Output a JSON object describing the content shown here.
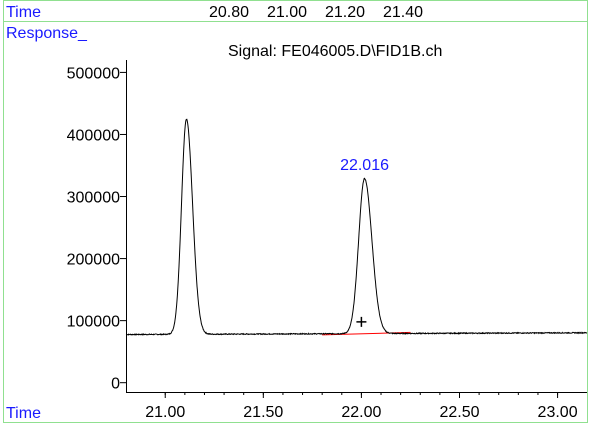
{
  "header": {
    "time_label": "Time",
    "top_ticks": [
      "20.80",
      "21.00",
      "21.20",
      "21.40"
    ],
    "response_label": "Response_",
    "signal_title": "Signal: FE046005.D\\FID1B.ch"
  },
  "chart_data": {
    "type": "line",
    "title": "Signal: FE046005.D\\FID1B.ch",
    "xlabel": "Time",
    "ylabel": "Response_",
    "xlim": [
      20.8,
      23.15
    ],
    "ylim": [
      -15000,
      520000
    ],
    "x_ticks": [
      "21.00",
      "21.50",
      "22.00",
      "22.50",
      "23.00"
    ],
    "y_ticks": [
      "0",
      "100000",
      "200000",
      "300000",
      "400000",
      "500000"
    ],
    "baseline_level": 78000,
    "peaks": [
      {
        "rt": 21.108,
        "height": 425000,
        "width": 0.025
      },
      {
        "rt": 22.016,
        "height": 328000,
        "width": 0.03,
        "label": "22.016"
      }
    ],
    "integration_baseline": {
      "x": [
        21.8,
        22.25
      ],
      "y": [
        77000,
        81000
      ]
    },
    "integration_marker": {
      "x": 22.0,
      "y": 98000
    },
    "colors": {
      "signal": "#000000",
      "baseline": "#ff0000",
      "label": "#1a1aff",
      "frame": "#90e090"
    }
  }
}
